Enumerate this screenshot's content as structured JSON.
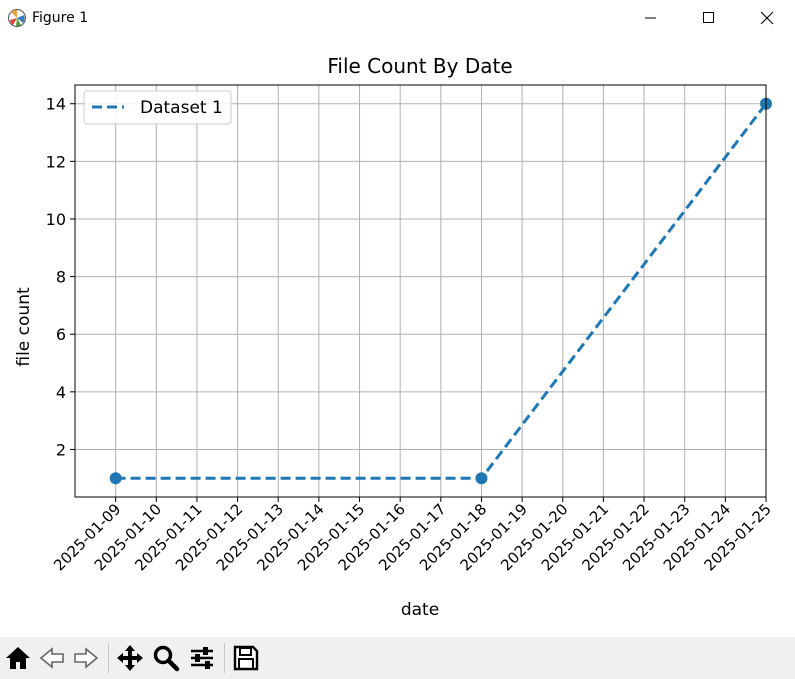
{
  "window": {
    "title": "Figure 1"
  },
  "toolbar": {
    "tools": [
      "home-icon",
      "back-icon",
      "forward-icon",
      "pan-icon",
      "zoom-icon",
      "configure-subplots-icon",
      "save-icon"
    ]
  },
  "chart_data": {
    "type": "line",
    "title": "File Count By Date",
    "xlabel": "date",
    "ylabel": "file count",
    "x_ticks": [
      "2025-01-09",
      "2025-01-10",
      "2025-01-11",
      "2025-01-12",
      "2025-01-13",
      "2025-01-14",
      "2025-01-15",
      "2025-01-16",
      "2025-01-17",
      "2025-01-18",
      "2025-01-19",
      "2025-01-20",
      "2025-01-21",
      "2025-01-22",
      "2025-01-23",
      "2025-01-24",
      "2025-01-25"
    ],
    "y_ticks": [
      "2",
      "4",
      "6",
      "8",
      "10",
      "12",
      "14"
    ],
    "ylim": [
      0.35,
      14.65
    ],
    "xlim": [
      "2025-01-08",
      "2025-01-25"
    ],
    "grid": true,
    "legend_position": "top-left",
    "series": [
      {
        "name": "Dataset 1",
        "color": "#1f77b4",
        "line_style": "dashed",
        "marker": "circle",
        "x": [
          "2025-01-09",
          "2025-01-18",
          "2025-01-25"
        ],
        "y": [
          1,
          1,
          14
        ]
      }
    ]
  }
}
